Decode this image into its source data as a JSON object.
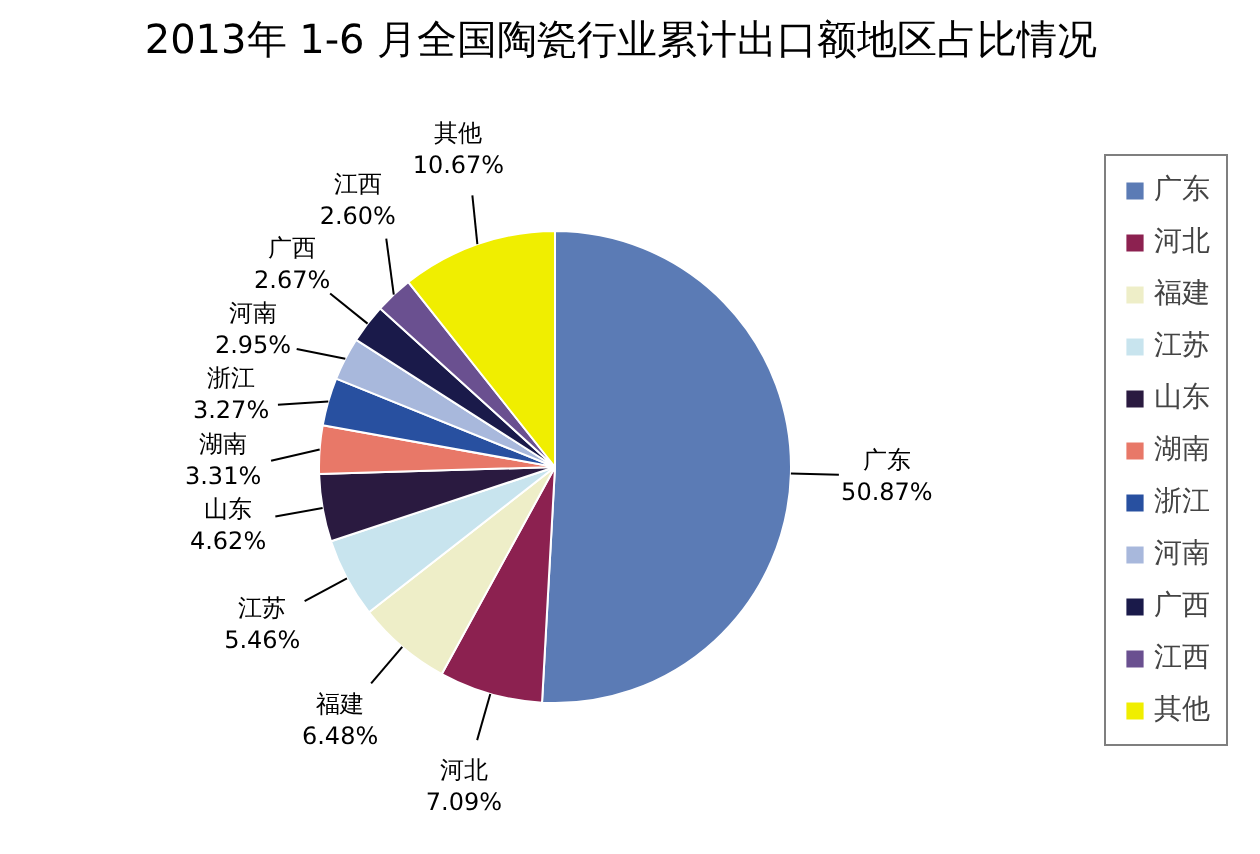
{
  "chart_data": {
    "type": "pie",
    "title": "2013年 1-6 月全国陶瓷行业累计出口额地区占比情况",
    "categories": [
      "广东",
      "河北",
      "福建",
      "江苏",
      "山东",
      "湖南",
      "浙江",
      "河南",
      "广西",
      "江西",
      "其他"
    ],
    "values": [
      50.87,
      7.09,
      6.48,
      5.46,
      4.62,
      3.31,
      3.27,
      2.95,
      2.67,
      2.6,
      10.67
    ],
    "value_labels": [
      "50.87%",
      "7.09%",
      "6.48%",
      "5.46%",
      "4.62%",
      "3.31%",
      "3.27%",
      "2.95%",
      "2.67%",
      "2.60%",
      "10.67%"
    ],
    "colors": [
      "#5b7bb5",
      "#8c2150",
      "#eeeec8",
      "#c8e4ee",
      "#2a1a40",
      "#e87868",
      "#2850a0",
      "#a8b8dc",
      "#1a1a4a",
      "#6a5090",
      "#f0ee00"
    ],
    "legend": "right"
  }
}
